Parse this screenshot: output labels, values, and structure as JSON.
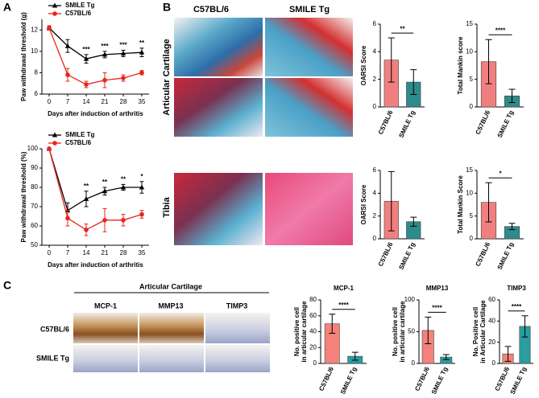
{
  "figure": {
    "panel_a": "A",
    "panel_b": "B",
    "panel_c": "C",
    "b_col_1": "C57BL/6",
    "b_col_2": "SMILE Tg",
    "b_row_1": "Articular Cartilage",
    "b_row_2": "Tibia",
    "c_header": "Articular Cartilage",
    "c_col_1": "MCP-1",
    "c_col_2": "MMP13",
    "c_col_3": "TIMP3",
    "c_row_1": "C57BL/6",
    "c_row_2": "SMILE Tg"
  },
  "chart_data": [
    {
      "type": "line",
      "xlabel": "Days after induction of arthritis",
      "ylabel": "Paw withdrawal threshold (g)",
      "x": [
        0,
        7,
        14,
        21,
        28,
        35
      ],
      "xticks": [
        0,
        7,
        14,
        21,
        28,
        35
      ],
      "ylim": [
        6,
        13
      ],
      "yticks": [
        6,
        8,
        10,
        12
      ],
      "legend": "upper left",
      "series": [
        {
          "name": "SMILE Tg",
          "color": "#000000",
          "marker": "triangle",
          "values": [
            12.2,
            10.5,
            9.3,
            9.7,
            9.8,
            9.9
          ],
          "errors": [
            0.2,
            0.6,
            0.4,
            0.3,
            0.3,
            0.4
          ]
        },
        {
          "name": "C57BL/6",
          "color": "#e8241c",
          "marker": "circle",
          "values": [
            12.2,
            7.8,
            6.9,
            7.3,
            7.5,
            8.0
          ],
          "errors": [
            0.2,
            0.6,
            0.3,
            0.7,
            0.3,
            0.2
          ]
        }
      ],
      "annotations": [
        {
          "x": 14,
          "text": "***"
        },
        {
          "x": 21,
          "text": "***"
        },
        {
          "x": 28,
          "text": "***"
        },
        {
          "x": 35,
          "text": "**"
        }
      ]
    },
    {
      "type": "line",
      "xlabel": "Days after induction of arthritis",
      "ylabel": "Paw withdrawal threshold (%)",
      "x": [
        0,
        7,
        14,
        21,
        28,
        35
      ],
      "xticks": [
        0,
        7,
        14,
        21,
        28,
        35
      ],
      "ylim": [
        50,
        100
      ],
      "yticks": [
        50,
        60,
        70,
        80,
        90,
        100
      ],
      "legend": "upper left",
      "series": [
        {
          "name": "SMILE Tg",
          "color": "#000000",
          "marker": "triangle",
          "values": [
            100,
            68,
            74,
            78,
            80,
            80
          ],
          "errors": [
            0.5,
            4,
            4,
            2,
            1.5,
            3
          ]
        },
        {
          "name": "C57BL/6",
          "color": "#e8241c",
          "marker": "circle",
          "values": [
            100,
            64,
            58,
            63,
            63,
            66
          ],
          "errors": [
            0.5,
            4,
            3,
            6,
            3,
            2
          ]
        }
      ],
      "annotations": [
        {
          "x": 14,
          "text": "**"
        },
        {
          "x": 21,
          "text": "**"
        },
        {
          "x": 28,
          "text": "**"
        },
        {
          "x": 35,
          "text": "*"
        }
      ]
    },
    {
      "type": "bar",
      "ylabel": [
        "OARSI Score"
      ],
      "categories": [
        "C57BL/6",
        "SMILE Tg"
      ],
      "values": [
        3.4,
        1.8
      ],
      "errors": [
        1.6,
        0.9
      ],
      "colors": [
        "#f08080",
        "#2e8b8b"
      ],
      "ylim": [
        0,
        6
      ],
      "yticks": [
        0,
        2,
        4,
        6
      ],
      "significance": "**"
    },
    {
      "type": "bar",
      "ylabel": [
        "Total Mankin score"
      ],
      "categories": [
        "C57BL/6",
        "SMILE Tg"
      ],
      "values": [
        8.2,
        2.0
      ],
      "errors": [
        4.0,
        1.2
      ],
      "colors": [
        "#f08080",
        "#2e8b8b"
      ],
      "ylim": [
        0,
        15
      ],
      "yticks": [
        0,
        5,
        10,
        15
      ],
      "significance": "****"
    },
    {
      "type": "bar",
      "ylabel": [
        "OARSI Score"
      ],
      "categories": [
        "C57BL/6",
        "SMILE Tg"
      ],
      "values": [
        3.3,
        1.5
      ],
      "errors": [
        2.6,
        0.4
      ],
      "colors": [
        "#f08080",
        "#2e8b8b"
      ],
      "ylim": [
        0,
        6
      ],
      "yticks": [
        0,
        2,
        4,
        6
      ]
    },
    {
      "type": "bar",
      "ylabel": [
        "Total Mankin Score"
      ],
      "categories": [
        "C57BL/6",
        "SMILE Tg"
      ],
      "values": [
        8.0,
        2.7
      ],
      "errors": [
        4.3,
        0.7
      ],
      "colors": [
        "#f08080",
        "#2e8b8b"
      ],
      "ylim": [
        0,
        15
      ],
      "yticks": [
        0,
        5,
        10,
        15
      ],
      "significance": "*"
    },
    {
      "type": "bar",
      "title": "MCP-1",
      "ylabel": [
        "No. positive cell",
        "in articular cartilage"
      ],
      "categories": [
        "C57BL/6",
        "SMILE Tg"
      ],
      "values": [
        50,
        9
      ],
      "errors": [
        12,
        5
      ],
      "colors": [
        "#f4827a",
        "#2a9d9f"
      ],
      "ylim": [
        0,
        80
      ],
      "yticks": [
        0,
        20,
        40,
        60,
        80
      ],
      "significance": "****"
    },
    {
      "type": "bar",
      "title": "MMP13",
      "ylabel": [
        "No. positive cell",
        "in articular cartilage"
      ],
      "categories": [
        "C57BL/6",
        "SMILE Tg"
      ],
      "values": [
        52,
        10
      ],
      "errors": [
        21,
        4
      ],
      "colors": [
        "#f4827a",
        "#2a9d9f"
      ],
      "ylim": [
        0,
        100
      ],
      "yticks": [
        0,
        50,
        100
      ],
      "significance": "****"
    },
    {
      "type": "bar",
      "title": "TIMP3",
      "ylabel": [
        "No. Positive cell",
        "in Articular Cartilage"
      ],
      "categories": [
        "C57BL/6",
        "SMILE Tg"
      ],
      "values": [
        9,
        35
      ],
      "errors": [
        7,
        10
      ],
      "colors": [
        "#f4827a",
        "#2a9d9f"
      ],
      "ylim": [
        0,
        60
      ],
      "yticks": [
        0,
        20,
        40,
        60
      ],
      "significance": "****"
    }
  ]
}
